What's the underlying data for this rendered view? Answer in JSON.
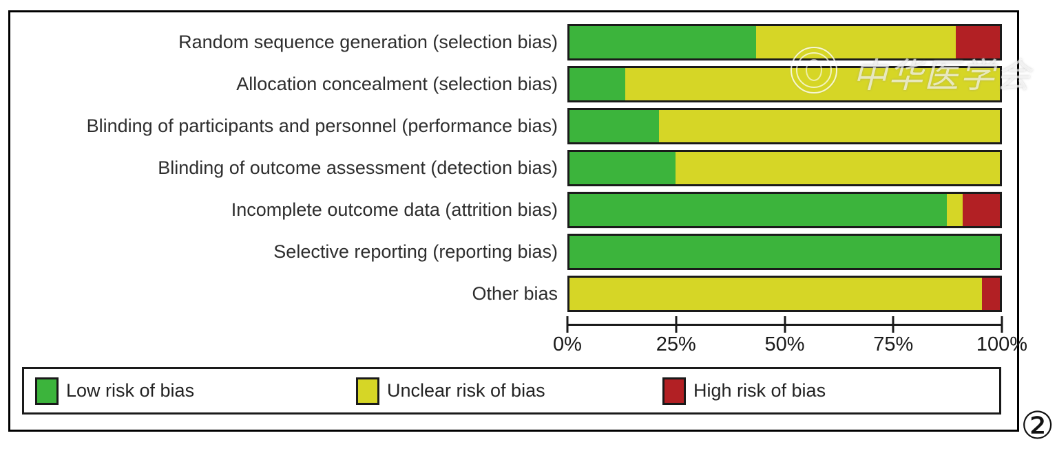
{
  "figure_number": "②",
  "watermark": {
    "text": "中华医学会",
    "seal": "chinese-medical-association-seal"
  },
  "colors": {
    "low": "#3cb43c",
    "unclear": "#d6d626",
    "high": "#b22024",
    "bar_border": "#1a1a1a"
  },
  "chart_data": {
    "type": "bar",
    "orientation": "horizontal",
    "stacked": true,
    "title": "",
    "xlabel": "",
    "ylabel": "",
    "xlim": [
      0,
      100
    ],
    "grid": false,
    "legend_position": "bottom",
    "categories": [
      "Random sequence generation (selection bias)",
      "Allocation concealment (selection bias)",
      "Blinding of participants and personnel (performance bias)",
      "Blinding of outcome assessment (detection bias)",
      "Incomplete outcome data (attrition bias)",
      "Selective reporting (reporting bias)",
      "Other bias"
    ],
    "series": [
      {
        "name": "Low risk of bias",
        "color_key": "low",
        "values": [
          43.3,
          13.0,
          20.8,
          24.7,
          87.6,
          100.0,
          0.0
        ]
      },
      {
        "name": "Unclear risk of bias",
        "color_key": "unclear",
        "values": [
          46.4,
          87.0,
          79.2,
          75.3,
          3.8,
          0.0,
          95.9
        ]
      },
      {
        "name": "High risk of bias",
        "color_key": "high",
        "values": [
          10.3,
          0.0,
          0.0,
          0.0,
          8.6,
          0.0,
          4.1
        ]
      }
    ],
    "x_ticks": [
      "0%",
      "25%",
      "50%",
      "75%",
      "100%"
    ]
  }
}
